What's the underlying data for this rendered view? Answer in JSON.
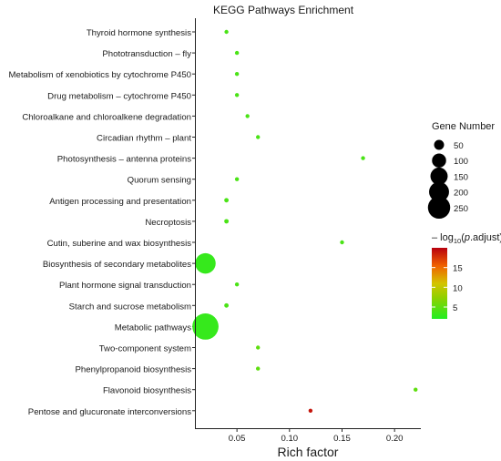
{
  "chart_data": {
    "type": "scatter",
    "title": "KEGG Pathways Enrichment",
    "xlabel": "Rich factor",
    "ylabel": "",
    "xlim": [
      0.01,
      0.225
    ],
    "x_ticks": [
      0.05,
      0.1,
      0.15,
      0.2
    ],
    "x_tick_labels": [
      "0.05",
      "0.10",
      "0.15",
      "0.20"
    ],
    "grid": false,
    "points": [
      {
        "pathway": "Thyroid hormone synthesis",
        "rich_factor": 0.04,
        "gene_number": 5,
        "neg_log10_padj": 4
      },
      {
        "pathway": "Phototransduction – fly",
        "rich_factor": 0.05,
        "gene_number": 5,
        "neg_log10_padj": 4
      },
      {
        "pathway": "Metabolism of xenobiotics by cytochrome P450",
        "rich_factor": 0.05,
        "gene_number": 5,
        "neg_log10_padj": 4
      },
      {
        "pathway": "Drug metabolism – cytochrome P450",
        "rich_factor": 0.05,
        "gene_number": 5,
        "neg_log10_padj": 4
      },
      {
        "pathway": "Chloroalkane and chloroalkene degradation",
        "rich_factor": 0.06,
        "gene_number": 3,
        "neg_log10_padj": 4
      },
      {
        "pathway": "Circadian rhythm – plant",
        "rich_factor": 0.07,
        "gene_number": 3,
        "neg_log10_padj": 4
      },
      {
        "pathway": "Photosynthesis – antenna proteins",
        "rich_factor": 0.17,
        "gene_number": 2,
        "neg_log10_padj": 4
      },
      {
        "pathway": "Quorum sensing",
        "rich_factor": 0.05,
        "gene_number": 5,
        "neg_log10_padj": 4
      },
      {
        "pathway": "Antigen processing and presentation",
        "rich_factor": 0.04,
        "gene_number": 8,
        "neg_log10_padj": 4
      },
      {
        "pathway": "Necroptosis",
        "rich_factor": 0.04,
        "gene_number": 8,
        "neg_log10_padj": 4
      },
      {
        "pathway": "Cutin, suberine and wax biosynthesis",
        "rich_factor": 0.15,
        "gene_number": 2,
        "neg_log10_padj": 4
      },
      {
        "pathway": "Biosynthesis of secondary metabolites",
        "rich_factor": 0.02,
        "gene_number": 170,
        "neg_log10_padj": 3
      },
      {
        "pathway": "Plant hormone signal transduction",
        "rich_factor": 0.05,
        "gene_number": 5,
        "neg_log10_padj": 4
      },
      {
        "pathway": "Starch and sucrose metabolism",
        "rich_factor": 0.04,
        "gene_number": 8,
        "neg_log10_padj": 4
      },
      {
        "pathway": "Metabolic pathways",
        "rich_factor": 0.02,
        "gene_number": 280,
        "neg_log10_padj": 3
      },
      {
        "pathway": "Two-component system",
        "rich_factor": 0.07,
        "gene_number": 5,
        "neg_log10_padj": 5
      },
      {
        "pathway": "Phenylpropanoid biosynthesis",
        "rich_factor": 0.07,
        "gene_number": 5,
        "neg_log10_padj": 5
      },
      {
        "pathway": "Flavonoid biosynthesis",
        "rich_factor": 0.22,
        "gene_number": 3,
        "neg_log10_padj": 5
      },
      {
        "pathway": "Pentose and glucuronate interconversions",
        "rich_factor": 0.12,
        "gene_number": 5,
        "neg_log10_padj": 19
      }
    ],
    "size_legend": {
      "title": "Gene Number",
      "values": [
        50,
        100,
        150,
        200,
        250
      ],
      "labels": [
        "50",
        "100",
        "150",
        "200",
        "250"
      ]
    },
    "color_legend": {
      "title": "– log10(p.adjust)",
      "title_parts": [
        "– log",
        "10",
        "(",
        "p",
        ".adjust)"
      ],
      "ticks": [
        5,
        10,
        15
      ],
      "tick_labels": [
        "5",
        "10",
        "15"
      ],
      "range": [
        2,
        20
      ],
      "colors": {
        "low": "#22ee22",
        "mid_low": "#90d000",
        "mid": "#d4c400",
        "mid_high": "#f06000",
        "high": "#b8000e"
      }
    },
    "colors": {
      "background": "#ffffff",
      "axis": "#222222",
      "point_mid": "#8fc41f",
      "point_high": "#8c1a10"
    }
  }
}
